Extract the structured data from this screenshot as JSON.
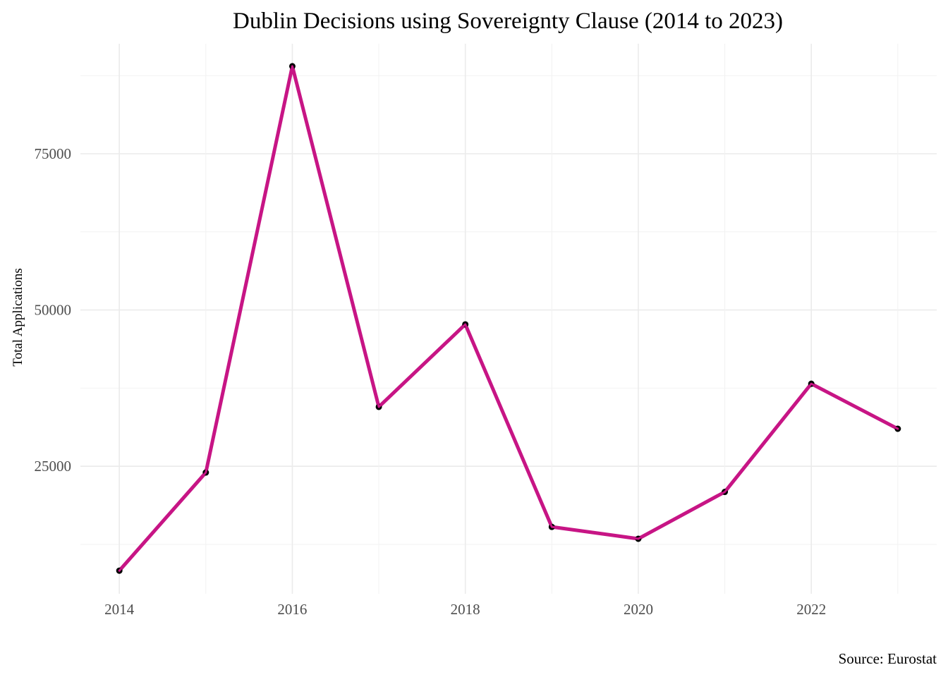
{
  "chart_data": {
    "type": "line",
    "title": "Dublin Decisions using Sovereignty Clause (2014 to 2023)",
    "xlabel": "",
    "ylabel": "Total Applications",
    "caption": "Source: Eurostat",
    "x": [
      2014,
      2015,
      2016,
      2017,
      2018,
      2019,
      2020,
      2021,
      2022,
      2023
    ],
    "series": [
      {
        "values": [
          8300,
          24000,
          89000,
          34500,
          47700,
          15300,
          13400,
          20900,
          38200,
          31000
        ]
      }
    ],
    "xticks": [
      "2014",
      "2016",
      "2018",
      "2020",
      "2022"
    ],
    "yticks": [
      "25000",
      "50000",
      "75000"
    ],
    "xlim": [
      2013.55,
      2023.45
    ],
    "ylim": [
      4600,
      92600
    ],
    "line_color": "#c71585",
    "point_color": "#000000",
    "grid": true,
    "legend": "none"
  }
}
